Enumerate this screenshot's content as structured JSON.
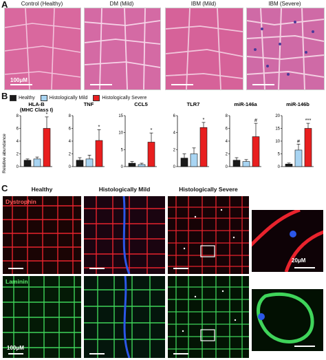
{
  "panel_a": {
    "letter": "A",
    "titles": [
      "Control (Healthy)",
      "DM (Mild)",
      "IBM (Mild)",
      "IBM (Severe)"
    ],
    "scale_label": "100μM"
  },
  "panel_b": {
    "letter": "B",
    "legend": [
      {
        "label": "Healthy",
        "color": "#1a1a1a"
      },
      {
        "label": "Histologically Mild",
        "color": "#a8d4f2"
      },
      {
        "label": "Histologically Severe",
        "color": "#e81f1f"
      }
    ],
    "ylabel": "Relative abundance"
  },
  "chart_data": [
    {
      "type": "bar",
      "title": "HLA-B\n(MHC Class I)",
      "categories": [
        "Healthy",
        "Histologically Mild",
        "Histologically Severe"
      ],
      "values": [
        1.0,
        1.2,
        6.0
      ],
      "errors": [
        0.2,
        0.3,
        1.8
      ],
      "yticks": [
        "0",
        "2",
        "4",
        "6",
        "8"
      ],
      "ylim": [
        0,
        8
      ],
      "annotations": [
        "",
        "",
        "*"
      ]
    },
    {
      "type": "bar",
      "title": "TNF",
      "categories": [
        "Healthy",
        "Histologically Mild",
        "Histologically Severe"
      ],
      "values": [
        1.0,
        1.2,
        4.1
      ],
      "errors": [
        0.4,
        0.6,
        1.7
      ],
      "yticks": [
        "0",
        "2",
        "4",
        "6",
        "8"
      ],
      "ylim": [
        0,
        8
      ],
      "annotations": [
        "",
        "",
        "*"
      ]
    },
    {
      "type": "bar",
      "title": "CCL5",
      "categories": [
        "Healthy",
        "Histologically Mild",
        "Histologically Severe"
      ],
      "values": [
        1.0,
        0.6,
        7.2
      ],
      "errors": [
        0.5,
        0.4,
        2.7
      ],
      "yticks": [
        "0",
        "5",
        "10",
        "15"
      ],
      "ylim": [
        0,
        15
      ],
      "annotations": [
        "",
        "",
        "*"
      ]
    },
    {
      "type": "bar",
      "title": "TLR7",
      "categories": [
        "Healthy",
        "Histologically Mild",
        "Histologically Severe"
      ],
      "values": [
        1.0,
        1.5,
        4.6
      ],
      "errors": [
        0.5,
        0.7,
        0.6
      ],
      "yticks": [
        "0",
        "2",
        "4",
        "6"
      ],
      "ylim": [
        0,
        6
      ],
      "annotations": [
        "",
        "",
        "*"
      ]
    },
    {
      "type": "bar",
      "title": "miR-146a",
      "categories": [
        "Healthy",
        "Histologically Mild",
        "Histologically Severe"
      ],
      "values": [
        1.0,
        0.8,
        4.7
      ],
      "errors": [
        0.4,
        0.3,
        2.1
      ],
      "yticks": [
        "0",
        "2",
        "4",
        "6",
        "8"
      ],
      "ylim": [
        0,
        8
      ],
      "annotations": [
        "",
        "",
        "#"
      ]
    },
    {
      "type": "bar",
      "title": "miR-146b",
      "categories": [
        "Healthy",
        "Histologically Mild",
        "Histologically Severe"
      ],
      "values": [
        1.0,
        6.5,
        15.0
      ],
      "errors": [
        0.4,
        2.3,
        2.0
      ],
      "yticks": [
        "0",
        "5",
        "10",
        "15",
        "20"
      ],
      "ylim": [
        0,
        20
      ],
      "annotations": [
        "",
        "#",
        "***"
      ]
    }
  ],
  "panel_c": {
    "letter": "C",
    "titles": [
      "Healthy",
      "Histologically Mild",
      "Histologically Severe"
    ],
    "stains": [
      "Dystrophin",
      "Laminin"
    ],
    "scale_label_inset": "20μM",
    "scale_label_main": "100μM"
  },
  "colors": {
    "he_pink": "#d9689e",
    "dystrophin": "#e8232d",
    "laminin": "#3fd45a",
    "dapi": "#2b57e8"
  }
}
